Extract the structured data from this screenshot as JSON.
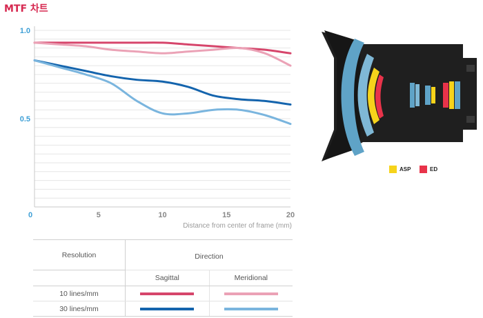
{
  "title": "MTF 차트",
  "chart_data": {
    "type": "line",
    "xlabel": "Distance from center of frame (mm)",
    "ylabel": "",
    "xlim": [
      0,
      20
    ],
    "ylim": [
      0,
      1.0
    ],
    "x_ticks": [
      "0",
      "5",
      "10",
      "15",
      "20"
    ],
    "y_ticks": [
      "1.0",
      "0.5"
    ],
    "grid": true,
    "series": [
      {
        "key": "s10",
        "color": "#d6456b",
        "x": [
          0,
          2,
          4,
          6,
          8,
          10,
          12,
          14,
          16,
          18,
          20
        ],
        "y": [
          0.93,
          0.93,
          0.93,
          0.93,
          0.93,
          0.93,
          0.92,
          0.91,
          0.9,
          0.89,
          0.87
        ]
      },
      {
        "key": "m10",
        "color": "#eba2b6",
        "x": [
          0,
          2,
          4,
          6,
          8,
          10,
          12,
          14,
          16,
          18,
          20
        ],
        "y": [
          0.93,
          0.92,
          0.91,
          0.89,
          0.88,
          0.87,
          0.88,
          0.89,
          0.9,
          0.87,
          0.8
        ]
      },
      {
        "key": "s30",
        "color": "#1464ad",
        "x": [
          0,
          2,
          4,
          6,
          8,
          10,
          12,
          14,
          16,
          18,
          20
        ],
        "y": [
          0.83,
          0.8,
          0.77,
          0.74,
          0.72,
          0.71,
          0.68,
          0.63,
          0.61,
          0.6,
          0.58
        ]
      },
      {
        "key": "m30",
        "color": "#7ab5de",
        "x": [
          0,
          2,
          4,
          6,
          8,
          10,
          12,
          14,
          16,
          18,
          20
        ],
        "y": [
          0.83,
          0.79,
          0.75,
          0.7,
          0.6,
          0.53,
          0.53,
          0.55,
          0.55,
          0.52,
          0.47
        ]
      }
    ]
  },
  "lens_legend": [
    {
      "label": "ASP",
      "color": "#f6d31b"
    },
    {
      "label": "ED",
      "color": "#e8334a"
    }
  ],
  "table": {
    "resolution_header": "Resolution",
    "direction_header": "Direction",
    "sagittal": "Sagittal",
    "meridional": "Meridional",
    "rows": [
      {
        "label": "10 lines/mm",
        "sagittal_color": "#d6456b",
        "meridional_color": "#eba2b6"
      },
      {
        "label": "30 lines/mm",
        "sagittal_color": "#1464ad",
        "meridional_color": "#7ab5de"
      }
    ]
  }
}
